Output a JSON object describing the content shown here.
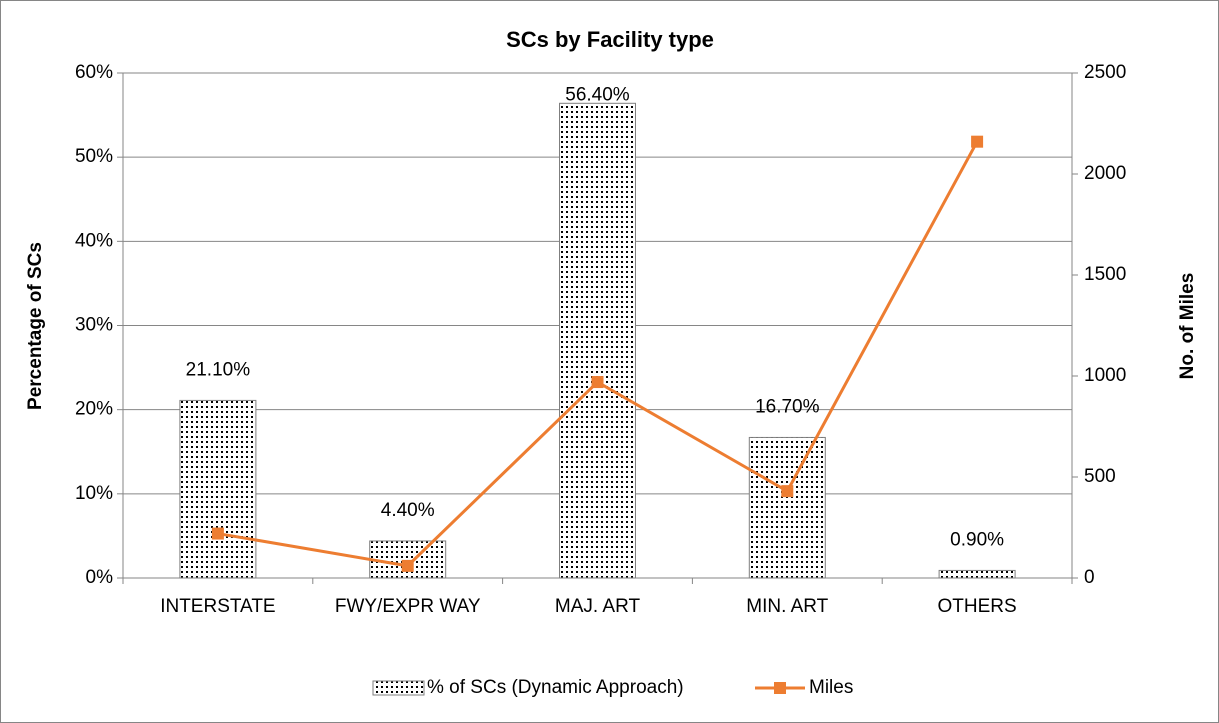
{
  "chart_data": {
    "type": "bar",
    "title": "SCs by Facility type",
    "y_label": "Percentage of  SCs",
    "y2_label": "No. of Miles",
    "categories": [
      "INTERSTATE",
      "FWY/EXPR WAY",
      "MAJ. ART",
      "MIN. ART",
      "OTHERS"
    ],
    "series": [
      {
        "name": "% of SCs (Dynamic Approach)",
        "type": "bar",
        "color": "#7f7f7f",
        "values": [
          21.1,
          4.4,
          56.4,
          16.7,
          0.9
        ],
        "value_labels": [
          "21.10%",
          "4.40%",
          "56.40%",
          "16.70%",
          "0.90%"
        ]
      },
      {
        "name": "Miles",
        "type": "line",
        "color": "#ed7d31",
        "axis": "y2",
        "values": [
          220,
          60,
          970,
          430,
          2160
        ]
      }
    ],
    "ylim": [
      0,
      60
    ],
    "yticks": [
      {
        "value": 0,
        "label": "0%"
      },
      {
        "value": 10,
        "label": "10%"
      },
      {
        "value": 20,
        "label": "20%"
      },
      {
        "value": 30,
        "label": "30%"
      },
      {
        "value": 40,
        "label": "40%"
      },
      {
        "value": 50,
        "label": "50%"
      },
      {
        "value": 60,
        "label": "60%"
      }
    ],
    "y2lim": [
      0,
      2500
    ],
    "y2ticks": [
      0,
      500,
      1000,
      1500,
      2000,
      2500
    ],
    "grid": true,
    "legend": "bottom"
  }
}
